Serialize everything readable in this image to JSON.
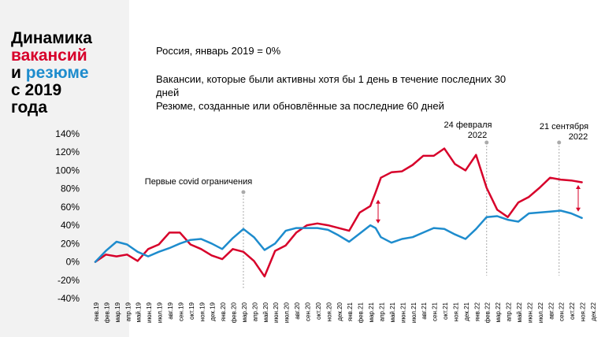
{
  "title": {
    "line1": "Динамика",
    "line2": "вакансий",
    "line3_prefix": "и ",
    "line3_word": "резюме",
    "line4": "с 2019",
    "line5": "года"
  },
  "notes": {
    "base": "Россия, январь 2019 = 0%",
    "vacancies_line1": "Вакансии, которые были активны хотя бы 1 день в течение последних 30",
    "vacancies_line2": "дней",
    "resumes": "Резюме, созданные или обновлённые за последние 60 дней"
  },
  "colors": {
    "vacancies": "#d7002a",
    "resumes": "#1e8ccd",
    "annotation": "#aaaaaa",
    "sidebar": "#f2f2f2"
  },
  "chart_data": {
    "type": "line",
    "title": "",
    "xlabel": "",
    "ylabel": "",
    "ylim": [
      -40,
      140
    ],
    "yticks": [
      {
        "value": 140,
        "label": "140%"
      },
      {
        "value": 120,
        "label": "120%"
      },
      {
        "value": 100,
        "label": "100%"
      },
      {
        "value": 80,
        "label": "80%"
      },
      {
        "value": 60,
        "label": "60%"
      },
      {
        "value": 40,
        "label": "40%"
      },
      {
        "value": 20,
        "label": "20%"
      },
      {
        "value": 0,
        "label": "0%"
      },
      {
        "value": -20,
        "label": "-20%"
      },
      {
        "value": -40,
        "label": "-40%"
      }
    ],
    "grid": false,
    "categories": [
      "янв.19",
      "фев.19",
      "мар.19",
      "апр.19",
      "май.19",
      "июн.19",
      "июл.19",
      "авг.19",
      "сен.19",
      "окт.19",
      "ноя.19",
      "дек.19",
      "янв.20",
      "фев.20",
      "мар.20",
      "апр.20",
      "май.20",
      "июн.20",
      "июл.20",
      "авг.20",
      "сен.20",
      "окт.20",
      "ноя.20",
      "дек.20",
      "янв.21",
      "фев.21",
      "мар.21",
      "апр.21",
      "май.21",
      "июн.21",
      "июл.21",
      "авг.21",
      "сен.21",
      "окт.21",
      "ноя.21",
      "дек.21",
      "янв.22",
      "фев.22",
      "мар.22",
      "апр.22",
      "май.22",
      "июн.22",
      "июл.22",
      "авг.22",
      "сен.22",
      "окт.22",
      "ноя.22",
      "дек.22"
    ],
    "x_half_steps": [
      0,
      1,
      2,
      3,
      4,
      5,
      6,
      7,
      8,
      9,
      10,
      11,
      12,
      13,
      14,
      15,
      16,
      17,
      18,
      19,
      20,
      21,
      22,
      23,
      24,
      25,
      26,
      26.5,
      27,
      28,
      29,
      30,
      31,
      32,
      33,
      34,
      35,
      36,
      37,
      38,
      39,
      40,
      41,
      42,
      43,
      44,
      45,
      46,
      47
    ],
    "series": [
      {
        "key": "vacancies",
        "values": [
          0,
          8,
          6,
          8,
          1,
          14,
          19,
          32,
          32,
          19,
          14,
          7,
          3,
          14,
          11,
          1,
          -16,
          12,
          18,
          32,
          40,
          42,
          40,
          37,
          34,
          54,
          61,
          76,
          92,
          98,
          99,
          106,
          116,
          116,
          124,
          107,
          100,
          117,
          81,
          57,
          49,
          65,
          71,
          81,
          92,
          90,
          89,
          87
        ]
      },
      {
        "key": "resumes",
        "values": [
          0,
          12,
          22,
          19,
          11,
          6,
          11,
          15,
          20,
          24,
          25,
          20,
          14,
          26,
          36,
          27,
          13,
          20,
          34,
          37,
          37,
          37,
          35,
          29,
          22,
          31,
          40,
          37,
          27,
          21,
          25,
          27,
          32,
          37,
          36,
          30,
          25,
          36,
          49,
          50,
          46,
          44,
          53,
          54,
          55,
          56,
          53,
          48
        ]
      }
    ],
    "annotations": [
      {
        "label": "Первые covid ограничения",
        "month": "мар.20"
      },
      {
        "label_line1": "24 февраля",
        "label_line2": "2022",
        "month": "фев.22"
      },
      {
        "label_line1": "21 сентября",
        "label_line2": "2022",
        "month": "сен.22"
      }
    ]
  }
}
